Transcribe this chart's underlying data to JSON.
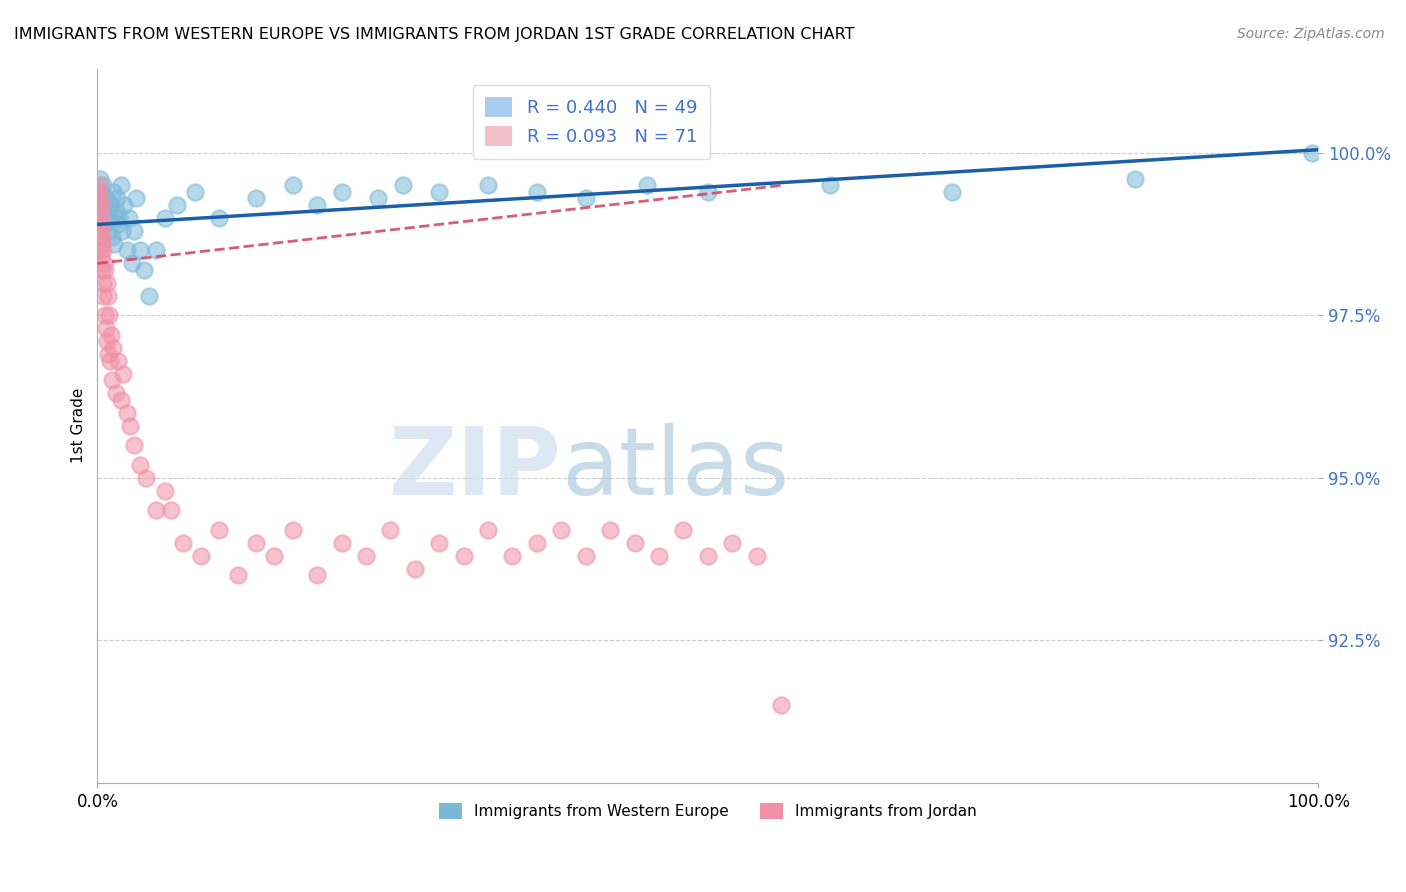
{
  "title": "IMMIGRANTS FROM WESTERN EUROPE VS IMMIGRANTS FROM JORDAN 1ST GRADE CORRELATION CHART",
  "source": "Source: ZipAtlas.com",
  "ylabel": "1st Grade",
  "ytick_labels": [
    "92.5%",
    "95.0%",
    "97.5%",
    "100.0%"
  ],
  "ytick_values": [
    92.5,
    95.0,
    97.5,
    100.0
  ],
  "xlim": [
    0.0,
    100.0
  ],
  "ylim": [
    90.3,
    101.3
  ],
  "blue_color": "#7bb8d8",
  "pink_color": "#f090a8",
  "blue_line_color": "#1a5fa8",
  "pink_line_color": "#d04060",
  "blue_scatter": {
    "x": [
      0.2,
      0.3,
      0.4,
      0.5,
      0.6,
      0.7,
      0.8,
      0.9,
      1.0,
      1.1,
      1.2,
      1.3,
      1.4,
      1.5,
      1.6,
      1.7,
      1.8,
      1.9,
      2.0,
      2.2,
      2.4,
      2.6,
      2.8,
      3.0,
      3.2,
      3.5,
      3.8,
      4.2,
      4.8,
      5.5,
      6.5,
      8.0,
      10.0,
      13.0,
      16.0,
      18.0,
      20.0,
      23.0,
      25.0,
      28.0,
      32.0,
      36.0,
      40.0,
      45.0,
      50.0,
      60.0,
      70.0,
      85.0,
      99.5
    ],
    "y": [
      99.6,
      99.4,
      99.2,
      99.5,
      98.9,
      99.3,
      99.1,
      98.8,
      99.0,
      99.2,
      98.7,
      99.4,
      98.6,
      99.1,
      99.3,
      98.9,
      99.0,
      99.5,
      98.8,
      99.2,
      98.5,
      99.0,
      98.3,
      98.8,
      99.3,
      98.5,
      98.2,
      97.8,
      98.5,
      99.0,
      99.2,
      99.4,
      99.0,
      99.3,
      99.5,
      99.2,
      99.4,
      99.3,
      99.5,
      99.4,
      99.5,
      99.4,
      99.3,
      99.5,
      99.4,
      99.5,
      99.4,
      99.6,
      100.0
    ]
  },
  "pink_scatter": {
    "x": [
      0.05,
      0.08,
      0.1,
      0.12,
      0.15,
      0.18,
      0.2,
      0.22,
      0.25,
      0.28,
      0.3,
      0.32,
      0.35,
      0.38,
      0.4,
      0.42,
      0.45,
      0.48,
      0.5,
      0.55,
      0.6,
      0.65,
      0.7,
      0.75,
      0.8,
      0.85,
      0.9,
      0.95,
      1.0,
      1.1,
      1.2,
      1.3,
      1.5,
      1.7,
      1.9,
      2.1,
      2.4,
      2.7,
      3.0,
      3.5,
      4.0,
      4.8,
      5.5,
      6.0,
      7.0,
      8.5,
      10.0,
      11.5,
      13.0,
      14.5,
      16.0,
      18.0,
      20.0,
      22.0,
      24.0,
      26.0,
      28.0,
      30.0,
      32.0,
      34.0,
      36.0,
      38.0,
      40.0,
      42.0,
      44.0,
      46.0,
      48.0,
      50.0,
      52.0,
      54.0,
      56.0
    ],
    "y": [
      99.4,
      99.2,
      98.9,
      99.5,
      98.7,
      99.1,
      98.5,
      99.3,
      98.8,
      99.0,
      98.4,
      99.2,
      98.6,
      98.9,
      98.2,
      98.7,
      98.0,
      98.5,
      97.8,
      98.3,
      97.5,
      98.2,
      97.3,
      98.0,
      97.1,
      97.8,
      96.9,
      97.5,
      96.8,
      97.2,
      96.5,
      97.0,
      96.3,
      96.8,
      96.2,
      96.6,
      96.0,
      95.8,
      95.5,
      95.2,
      95.0,
      94.5,
      94.8,
      94.5,
      94.0,
      93.8,
      94.2,
      93.5,
      94.0,
      93.8,
      94.2,
      93.5,
      94.0,
      93.8,
      94.2,
      93.6,
      94.0,
      93.8,
      94.2,
      93.8,
      94.0,
      94.2,
      93.8,
      94.2,
      94.0,
      93.8,
      94.2,
      93.8,
      94.0,
      93.8,
      91.5
    ]
  },
  "blue_trend": {
    "x_start": 0.0,
    "x_end": 100.0,
    "y_start": 98.9,
    "y_end": 100.05
  },
  "pink_trend": {
    "x_start": 0.0,
    "x_end": 56.0,
    "y_start": 98.3,
    "y_end": 99.5
  },
  "legend_blue_label": "R = 0.440   N = 49",
  "legend_pink_label": "R = 0.093   N = 71",
  "legend_blue_color": "#aaccee",
  "legend_pink_color": "#f4c0cc",
  "watermark_zip": "ZIP",
  "watermark_atlas": "atlas",
  "series1_label": "Immigrants from Western Europe",
  "series2_label": "Immigrants from Jordan"
}
